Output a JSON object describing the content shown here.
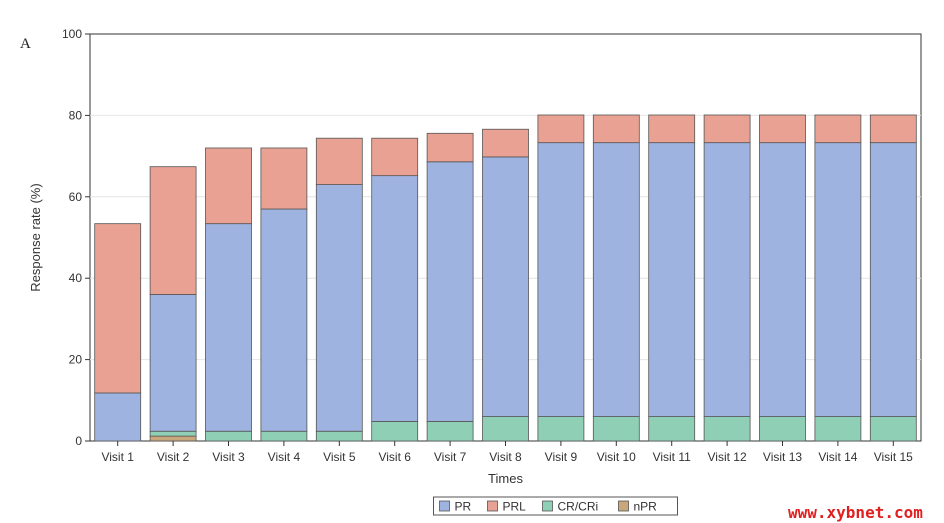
{
  "panel_label": "A",
  "watermark": "www.xybnet.com",
  "chart_data": {
    "type": "bar",
    "stacked": true,
    "title": "",
    "xlabel": "Times",
    "ylabel": "Response rate (%)",
    "ylim": [
      0,
      100
    ],
    "yticks": [
      0,
      20,
      40,
      60,
      80,
      100
    ],
    "grid": true,
    "legend_position": "bottom-center",
    "categories": [
      "Visit 1",
      "Visit 2",
      "Visit 3",
      "Visit 4",
      "Visit 5",
      "Visit 6",
      "Visit 7",
      "Visit 8",
      "Visit 9",
      "Visit 10",
      "Visit 11",
      "Visit 12",
      "Visit 13",
      "Visit 14",
      "Visit 15"
    ],
    "series": [
      {
        "name": "nPR",
        "color": "#c8a77a",
        "values": [
          0,
          1.2,
          0,
          0,
          0,
          0,
          0,
          0,
          0,
          0,
          0,
          0,
          0,
          0,
          0
        ]
      },
      {
        "name": "CR/CRi",
        "color": "#8ecfb5",
        "values": [
          0,
          1.2,
          2.4,
          2.4,
          2.4,
          4.8,
          4.8,
          6.0,
          6.0,
          6.0,
          6.0,
          6.0,
          6.0,
          6.0,
          6.0
        ]
      },
      {
        "name": "PR",
        "color": "#9fb3e0",
        "values": [
          11.8,
          33.6,
          51.0,
          54.6,
          60.6,
          60.4,
          63.8,
          63.8,
          67.3,
          67.3,
          67.3,
          67.3,
          67.3,
          67.3,
          67.3
        ]
      },
      {
        "name": "PRL",
        "color": "#e8a193",
        "values": [
          41.6,
          31.4,
          18.6,
          15.0,
          11.4,
          9.2,
          7.0,
          6.8,
          6.8,
          6.8,
          6.8,
          6.8,
          6.8,
          6.8,
          6.8
        ]
      }
    ],
    "legend_order": [
      "PR",
      "PRL",
      "CR/CRi",
      "nPR"
    ]
  }
}
